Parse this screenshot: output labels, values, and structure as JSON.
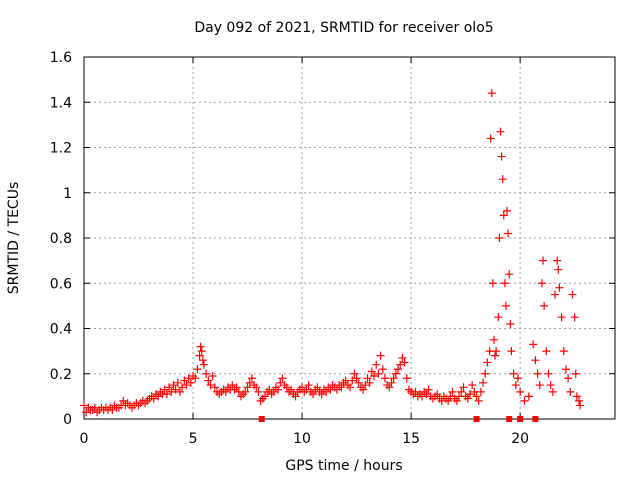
{
  "chart_data": {
    "type": "scatter",
    "title": "Day 092 of 2021, SRMTID for receiver olo5",
    "xlabel": "GPS time / hours",
    "ylabel": "SRMTID / TECUs",
    "xlim": [
      0,
      24.35
    ],
    "ylim": [
      0,
      1.6
    ],
    "x_ticks": [
      0,
      5,
      10,
      15,
      20
    ],
    "x_tick_labels": [
      "0",
      "5",
      "10",
      "15",
      "20"
    ],
    "y_ticks": [
      0,
      0.2,
      0.4,
      0.6,
      0.8,
      1.0,
      1.2,
      1.4,
      1.6
    ],
    "y_tick_labels": [
      "0",
      "0.2",
      "0.4",
      "0.6",
      "0.8",
      "1",
      "1.2",
      "1.4",
      "1.6"
    ],
    "grid": true,
    "series": [
      {
        "name": "SRMTID",
        "marker": "plus",
        "color": "#ff0000",
        "points": [
          [
            0.0,
            0.06
          ],
          [
            0.1,
            0.03
          ],
          [
            0.2,
            0.05
          ],
          [
            0.3,
            0.04
          ],
          [
            0.4,
            0.04
          ],
          [
            0.5,
            0.05
          ],
          [
            0.6,
            0.03
          ],
          [
            0.7,
            0.04
          ],
          [
            0.8,
            0.05
          ],
          [
            0.9,
            0.04
          ],
          [
            1.0,
            0.05
          ],
          [
            1.1,
            0.04
          ],
          [
            1.2,
            0.05
          ],
          [
            1.3,
            0.04
          ],
          [
            1.4,
            0.06
          ],
          [
            1.5,
            0.05
          ],
          [
            1.6,
            0.05
          ],
          [
            1.7,
            0.06
          ],
          [
            1.8,
            0.08
          ],
          [
            1.9,
            0.06
          ],
          [
            2.0,
            0.07
          ],
          [
            2.1,
            0.06
          ],
          [
            2.2,
            0.05
          ],
          [
            2.3,
            0.06
          ],
          [
            2.4,
            0.07
          ],
          [
            2.5,
            0.06
          ],
          [
            2.6,
            0.07
          ],
          [
            2.7,
            0.08
          ],
          [
            2.8,
            0.07
          ],
          [
            2.9,
            0.08
          ],
          [
            3.0,
            0.09
          ],
          [
            3.1,
            0.1
          ],
          [
            3.2,
            0.09
          ],
          [
            3.3,
            0.11
          ],
          [
            3.4,
            0.1
          ],
          [
            3.5,
            0.12
          ],
          [
            3.6,
            0.11
          ],
          [
            3.7,
            0.13
          ],
          [
            3.8,
            0.11
          ],
          [
            3.9,
            0.14
          ],
          [
            4.0,
            0.12
          ],
          [
            4.1,
            0.15
          ],
          [
            4.2,
            0.13
          ],
          [
            4.3,
            0.16
          ],
          [
            4.4,
            0.12
          ],
          [
            4.5,
            0.14
          ],
          [
            4.6,
            0.17
          ],
          [
            4.7,
            0.15
          ],
          [
            4.8,
            0.18
          ],
          [
            4.9,
            0.16
          ],
          [
            5.0,
            0.19
          ],
          [
            5.1,
            0.18
          ],
          [
            5.2,
            0.22
          ],
          [
            5.3,
            0.28
          ],
          [
            5.35,
            0.32
          ],
          [
            5.4,
            0.3
          ],
          [
            5.45,
            0.26
          ],
          [
            5.5,
            0.24
          ],
          [
            5.6,
            0.2
          ],
          [
            5.7,
            0.17
          ],
          [
            5.8,
            0.15
          ],
          [
            5.9,
            0.19
          ],
          [
            6.0,
            0.14
          ],
          [
            6.1,
            0.12
          ],
          [
            6.2,
            0.11
          ],
          [
            6.3,
            0.12
          ],
          [
            6.4,
            0.13
          ],
          [
            6.5,
            0.12
          ],
          [
            6.6,
            0.14
          ],
          [
            6.7,
            0.13
          ],
          [
            6.8,
            0.15
          ],
          [
            6.9,
            0.13
          ],
          [
            7.0,
            0.14
          ],
          [
            7.1,
            0.12
          ],
          [
            7.2,
            0.1
          ],
          [
            7.3,
            0.11
          ],
          [
            7.4,
            0.12
          ],
          [
            7.5,
            0.14
          ],
          [
            7.6,
            0.16
          ],
          [
            7.7,
            0.18
          ],
          [
            7.8,
            0.15
          ],
          [
            7.9,
            0.14
          ],
          [
            8.0,
            0.12
          ],
          [
            8.1,
            0.08
          ],
          [
            8.2,
            0.09
          ],
          [
            8.3,
            0.1
          ],
          [
            8.4,
            0.12
          ],
          [
            8.5,
            0.13
          ],
          [
            8.6,
            0.11
          ],
          [
            8.7,
            0.12
          ],
          [
            8.8,
            0.14
          ],
          [
            8.9,
            0.13
          ],
          [
            9.0,
            0.16
          ],
          [
            9.1,
            0.18
          ],
          [
            9.2,
            0.15
          ],
          [
            9.3,
            0.14
          ],
          [
            9.4,
            0.12
          ],
          [
            9.5,
            0.13
          ],
          [
            9.6,
            0.11
          ],
          [
            9.7,
            0.1
          ],
          [
            9.8,
            0.12
          ],
          [
            9.9,
            0.13
          ],
          [
            10.0,
            0.14
          ],
          [
            10.1,
            0.12
          ],
          [
            10.2,
            0.13
          ],
          [
            10.3,
            0.15
          ],
          [
            10.4,
            0.12
          ],
          [
            10.5,
            0.11
          ],
          [
            10.6,
            0.13
          ],
          [
            10.7,
            0.14
          ],
          [
            10.8,
            0.12
          ],
          [
            10.9,
            0.11
          ],
          [
            11.0,
            0.13
          ],
          [
            11.1,
            0.12
          ],
          [
            11.2,
            0.14
          ],
          [
            11.3,
            0.13
          ],
          [
            11.4,
            0.15
          ],
          [
            11.5,
            0.14
          ],
          [
            11.6,
            0.13
          ],
          [
            11.7,
            0.15
          ],
          [
            11.8,
            0.14
          ],
          [
            11.9,
            0.16
          ],
          [
            12.0,
            0.17
          ],
          [
            12.1,
            0.15
          ],
          [
            12.2,
            0.14
          ],
          [
            12.3,
            0.17
          ],
          [
            12.4,
            0.2
          ],
          [
            12.5,
            0.18
          ],
          [
            12.6,
            0.16
          ],
          [
            12.7,
            0.14
          ],
          [
            12.8,
            0.13
          ],
          [
            12.9,
            0.15
          ],
          [
            13.0,
            0.18
          ],
          [
            13.1,
            0.16
          ],
          [
            13.2,
            0.21
          ],
          [
            13.3,
            0.19
          ],
          [
            13.4,
            0.24
          ],
          [
            13.5,
            0.2
          ],
          [
            13.6,
            0.28
          ],
          [
            13.7,
            0.22
          ],
          [
            13.8,
            0.18
          ],
          [
            13.9,
            0.15
          ],
          [
            14.0,
            0.14
          ],
          [
            14.1,
            0.16
          ],
          [
            14.2,
            0.18
          ],
          [
            14.3,
            0.2
          ],
          [
            14.4,
            0.22
          ],
          [
            14.5,
            0.24
          ],
          [
            14.6,
            0.27
          ],
          [
            14.7,
            0.25
          ],
          [
            14.8,
            0.18
          ],
          [
            14.9,
            0.13
          ],
          [
            15.0,
            0.12
          ],
          [
            15.1,
            0.11
          ],
          [
            15.2,
            0.12
          ],
          [
            15.3,
            0.1
          ],
          [
            15.4,
            0.11
          ],
          [
            15.5,
            0.1
          ],
          [
            15.6,
            0.12
          ],
          [
            15.7,
            0.11
          ],
          [
            15.8,
            0.13
          ],
          [
            15.9,
            0.1
          ],
          [
            16.0,
            0.09
          ],
          [
            16.1,
            0.1
          ],
          [
            16.2,
            0.11
          ],
          [
            16.3,
            0.09
          ],
          [
            16.4,
            0.08
          ],
          [
            16.5,
            0.1
          ],
          [
            16.6,
            0.09
          ],
          [
            16.7,
            0.08
          ],
          [
            16.8,
            0.1
          ],
          [
            16.9,
            0.12
          ],
          [
            17.0,
            0.09
          ],
          [
            17.1,
            0.08
          ],
          [
            17.2,
            0.1
          ],
          [
            17.3,
            0.12
          ],
          [
            17.4,
            0.14
          ],
          [
            17.5,
            0.1
          ],
          [
            17.6,
            0.09
          ],
          [
            17.7,
            0.11
          ],
          [
            17.8,
            0.15
          ],
          [
            17.9,
            0.12
          ],
          [
            18.0,
            0.1
          ],
          [
            18.1,
            0.08
          ],
          [
            18.2,
            0.12
          ],
          [
            18.3,
            0.16
          ],
          [
            18.4,
            0.2
          ],
          [
            18.5,
            0.25
          ],
          [
            18.6,
            0.3
          ],
          [
            18.65,
            1.24
          ],
          [
            18.7,
            1.44
          ],
          [
            18.75,
            0.6
          ],
          [
            18.8,
            0.35
          ],
          [
            18.85,
            0.28
          ],
          [
            18.9,
            0.3
          ],
          [
            19.0,
            0.45
          ],
          [
            19.05,
            0.8
          ],
          [
            19.1,
            1.27
          ],
          [
            19.15,
            1.16
          ],
          [
            19.2,
            1.06
          ],
          [
            19.25,
            0.9
          ],
          [
            19.3,
            0.6
          ],
          [
            19.35,
            0.5
          ],
          [
            19.4,
            0.92
          ],
          [
            19.45,
            0.82
          ],
          [
            19.5,
            0.64
          ],
          [
            19.55,
            0.42
          ],
          [
            19.6,
            0.3
          ],
          [
            19.7,
            0.2
          ],
          [
            19.8,
            0.15
          ],
          [
            19.9,
            0.18
          ],
          [
            20.0,
            0.12
          ],
          [
            20.2,
            0.08
          ],
          [
            20.4,
            0.1
          ],
          [
            20.6,
            0.33
          ],
          [
            20.7,
            0.26
          ],
          [
            20.8,
            0.2
          ],
          [
            20.9,
            0.15
          ],
          [
            21.0,
            0.6
          ],
          [
            21.05,
            0.7
          ],
          [
            21.1,
            0.5
          ],
          [
            21.2,
            0.3
          ],
          [
            21.3,
            0.2
          ],
          [
            21.4,
            0.15
          ],
          [
            21.5,
            0.12
          ],
          [
            21.6,
            0.55
          ],
          [
            21.7,
            0.7
          ],
          [
            21.75,
            0.66
          ],
          [
            21.8,
            0.58
          ],
          [
            21.9,
            0.45
          ],
          [
            22.0,
            0.3
          ],
          [
            22.1,
            0.22
          ],
          [
            22.2,
            0.18
          ],
          [
            22.3,
            0.12
          ],
          [
            22.4,
            0.55
          ],
          [
            22.5,
            0.45
          ],
          [
            22.55,
            0.2
          ],
          [
            22.6,
            0.1
          ],
          [
            22.7,
            0.08
          ],
          [
            22.75,
            0.06
          ]
        ]
      },
      {
        "name": "zero-level markers",
        "marker": "square",
        "color": "#ff0000",
        "points": [
          [
            8.15,
            0.0
          ],
          [
            18.0,
            0.0
          ],
          [
            19.5,
            0.0
          ],
          [
            20.0,
            0.0
          ],
          [
            20.7,
            0.0
          ]
        ]
      }
    ]
  }
}
